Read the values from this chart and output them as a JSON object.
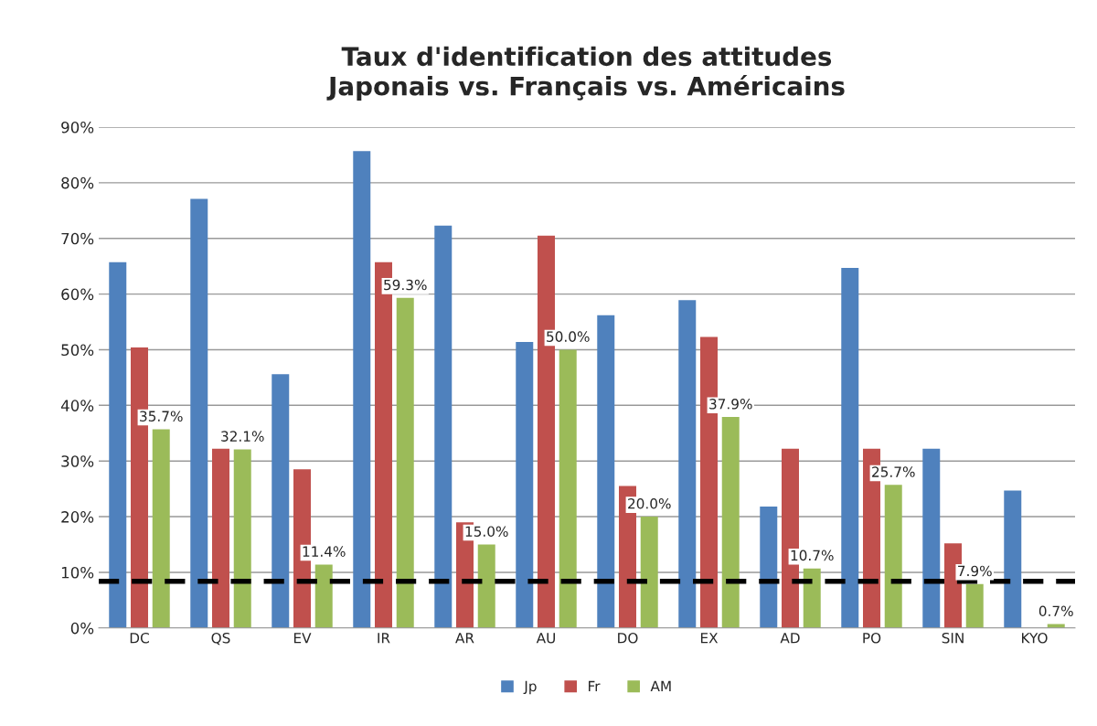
{
  "chart_data": {
    "type": "bar",
    "title": "Taux d'identification des attitudes\nJaponais vs. Français vs. Américains",
    "categories": [
      "DC",
      "QS",
      "EV",
      "IR",
      "AR",
      "AU",
      "DO",
      "EX",
      "AD",
      "PO",
      "SIN",
      "KYO"
    ],
    "series": [
      {
        "name": "Jp",
        "color": "#4f81bd",
        "values": [
          65.7,
          77.1,
          45.6,
          85.7,
          72.3,
          51.4,
          56.2,
          58.9,
          21.8,
          64.7,
          32.2,
          24.7
        ]
      },
      {
        "name": "Fr",
        "color": "#c0504d",
        "values": [
          50.4,
          32.2,
          28.5,
          65.7,
          19.0,
          70.5,
          25.5,
          52.3,
          32.2,
          32.2,
          15.2,
          null
        ]
      },
      {
        "name": "AM",
        "color": "#9bbb59",
        "values": [
          35.7,
          32.1,
          11.4,
          59.3,
          15.0,
          50.0,
          20.0,
          37.9,
          10.7,
          25.7,
          7.9,
          0.7
        ],
        "value_labels": [
          "35.7%",
          "32.1%",
          "11.4%",
          "59.3%",
          "15.0%",
          "50.0%",
          "20.0%",
          "37.9%",
          "10.7%",
          "25.7%",
          "7.9%",
          "0.7%"
        ]
      }
    ],
    "ylim": [
      0,
      90
    ],
    "yticks": [
      {
        "value": 0,
        "label": "0%"
      },
      {
        "value": 10,
        "label": "10%"
      },
      {
        "value": 20,
        "label": "20%"
      },
      {
        "value": 30,
        "label": "30%"
      },
      {
        "value": 40,
        "label": "40%"
      },
      {
        "value": 50,
        "label": "50%"
      },
      {
        "value": 60,
        "label": "60%"
      },
      {
        "value": 70,
        "label": "70%"
      },
      {
        "value": 80,
        "label": "80%"
      },
      {
        "value": 90,
        "label": "90%"
      }
    ],
    "grid": "y",
    "legend": "bottom",
    "ref_lines": [
      {
        "axis": "y",
        "value": 8.4,
        "color": "#000000",
        "line_style": "dashed"
      }
    ]
  }
}
